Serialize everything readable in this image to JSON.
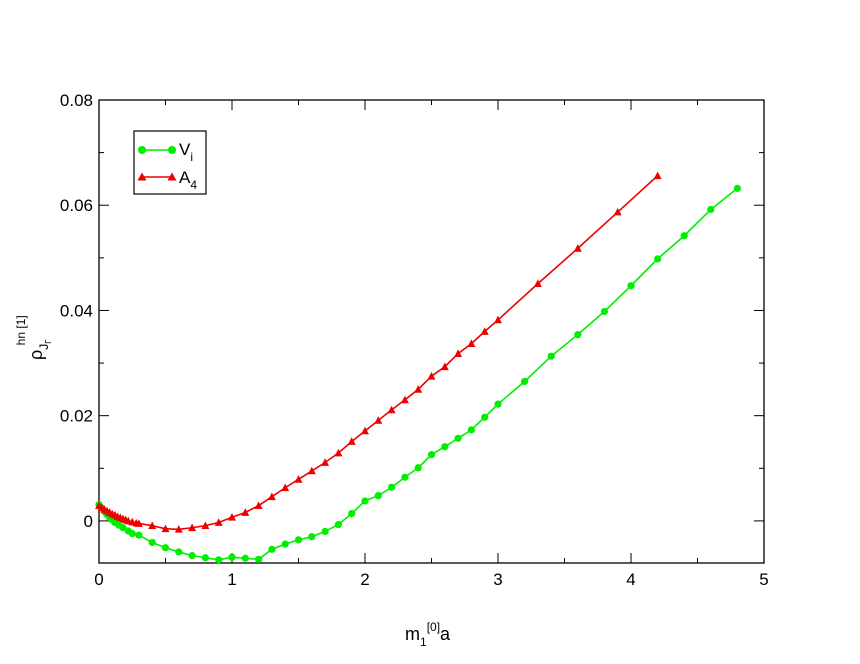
{
  "chart_data": {
    "type": "line",
    "title": "",
    "xlabel": {
      "main": "m",
      "sub": "1",
      "sup": "[0]",
      "suffix": "a"
    },
    "ylabel": {
      "main": "ρ",
      "sub": "J",
      "subsub": "Γ",
      "sup": "hn [1]"
    },
    "xlim": [
      0,
      5
    ],
    "ylim": [
      -0.008,
      0.08
    ],
    "xticks": [
      0,
      1,
      2,
      3,
      4,
      5
    ],
    "xtick_labels": [
      "0",
      "1",
      "2",
      "3",
      "4",
      "5"
    ],
    "yticks": [
      0,
      0.02,
      0.04,
      0.06,
      0.08
    ],
    "ytick_labels": [
      "0",
      "0.02",
      "0.04",
      "0.06",
      "0.08"
    ],
    "grid": false,
    "legend_position": "top-left",
    "series": [
      {
        "name": "V",
        "name_sub": "i",
        "color": "#00ee00",
        "marker": "circle",
        "points": [
          [
            0.0,
            0.0031
          ],
          [
            0.02,
            0.0025
          ],
          [
            0.04,
            0.0018
          ],
          [
            0.06,
            0.0012
          ],
          [
            0.08,
            0.0006
          ],
          [
            0.1,
            0.0002
          ],
          [
            0.12,
            -0.0003
          ],
          [
            0.15,
            -0.0008
          ],
          [
            0.18,
            -0.0013
          ],
          [
            0.22,
            -0.0019
          ],
          [
            0.25,
            -0.0024
          ],
          [
            0.3,
            -0.0027
          ],
          [
            0.4,
            -0.0041
          ],
          [
            0.5,
            -0.0051
          ],
          [
            0.6,
            -0.0059
          ],
          [
            0.7,
            -0.0066
          ],
          [
            0.8,
            -0.007
          ],
          [
            0.9,
            -0.0074
          ],
          [
            1.0,
            -0.0069
          ],
          [
            1.1,
            -0.0071
          ],
          [
            1.2,
            -0.0073
          ],
          [
            1.3,
            -0.0054
          ],
          [
            1.4,
            -0.0044
          ],
          [
            1.5,
            -0.0036
          ],
          [
            1.6,
            -0.003
          ],
          [
            1.7,
            -0.002
          ],
          [
            1.8,
            -0.0007
          ],
          [
            1.9,
            0.0014
          ],
          [
            2.0,
            0.0038
          ],
          [
            2.1,
            0.0048
          ],
          [
            2.2,
            0.0064
          ],
          [
            2.3,
            0.0083
          ],
          [
            2.4,
            0.0101
          ],
          [
            2.5,
            0.0126
          ],
          [
            2.6,
            0.0141
          ],
          [
            2.7,
            0.0157
          ],
          [
            2.8,
            0.0173
          ],
          [
            2.9,
            0.0197
          ],
          [
            3.0,
            0.0222
          ],
          [
            3.2,
            0.0265
          ],
          [
            3.4,
            0.0313
          ],
          [
            3.6,
            0.0354
          ],
          [
            3.8,
            0.0398
          ],
          [
            4.0,
            0.0447
          ],
          [
            4.2,
            0.0498
          ],
          [
            4.4,
            0.0542
          ],
          [
            4.6,
            0.0592
          ],
          [
            4.8,
            0.0632
          ]
        ]
      },
      {
        "name": "A",
        "name_sub": "4",
        "color": "#ee0000",
        "marker": "triangle",
        "points": [
          [
            0.0,
            0.0029
          ],
          [
            0.02,
            0.0025
          ],
          [
            0.04,
            0.0022
          ],
          [
            0.06,
            0.0019
          ],
          [
            0.08,
            0.0016
          ],
          [
            0.1,
            0.0013
          ],
          [
            0.12,
            0.0011
          ],
          [
            0.14,
            0.0008
          ],
          [
            0.16,
            0.0006
          ],
          [
            0.18,
            0.0004
          ],
          [
            0.2,
            0.0002
          ],
          [
            0.22,
            0.0
          ],
          [
            0.25,
            -0.0002
          ],
          [
            0.28,
            -0.0004
          ],
          [
            0.3,
            -0.0005
          ],
          [
            0.4,
            -0.0009
          ],
          [
            0.5,
            -0.0015
          ],
          [
            0.6,
            -0.0016
          ],
          [
            0.7,
            -0.0013
          ],
          [
            0.8,
            -0.0009
          ],
          [
            0.9,
            -0.0003
          ],
          [
            1.0,
            0.0007
          ],
          [
            1.1,
            0.0016
          ],
          [
            1.2,
            0.0029
          ],
          [
            1.3,
            0.0046
          ],
          [
            1.4,
            0.0063
          ],
          [
            1.5,
            0.0079
          ],
          [
            1.6,
            0.0095
          ],
          [
            1.7,
            0.0111
          ],
          [
            1.8,
            0.0129
          ],
          [
            1.9,
            0.0151
          ],
          [
            2.0,
            0.0171
          ],
          [
            2.1,
            0.0191
          ],
          [
            2.2,
            0.0211
          ],
          [
            2.3,
            0.023
          ],
          [
            2.4,
            0.025
          ],
          [
            2.5,
            0.0275
          ],
          [
            2.6,
            0.0293
          ],
          [
            2.7,
            0.0318
          ],
          [
            2.8,
            0.0337
          ],
          [
            2.9,
            0.036
          ],
          [
            3.0,
            0.0382
          ],
          [
            3.3,
            0.0451
          ],
          [
            3.6,
            0.0518
          ],
          [
            3.9,
            0.0587
          ],
          [
            4.2,
            0.0656
          ]
        ]
      }
    ]
  }
}
